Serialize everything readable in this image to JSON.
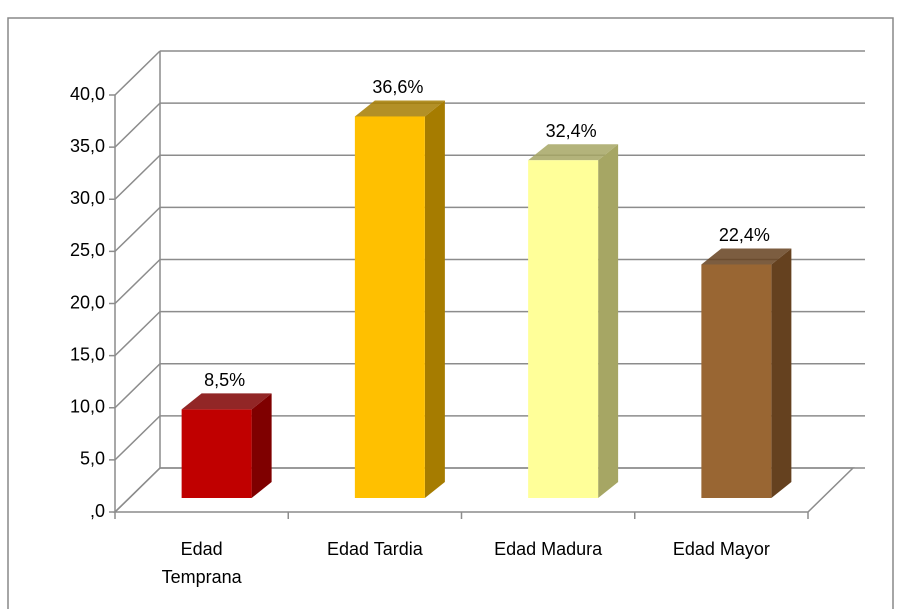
{
  "chart_data": {
    "type": "bar3d",
    "categories": [
      "Edad Temprana",
      "Edad Tardia",
      "Edad Madura",
      "Edad Mayor"
    ],
    "values": [
      8.5,
      36.6,
      32.4,
      22.4
    ],
    "value_labels": [
      "8,5%",
      "36,6%",
      "32,4%",
      "22,4%"
    ],
    "colors": [
      "#c00000",
      "#ffc000",
      "#ffff99",
      "#996633"
    ],
    "side_colors": [
      "#7f0000",
      "#a67c00",
      "#a6a664",
      "#65411f"
    ],
    "ylim": [
      0,
      40
    ],
    "yticks": [
      {
        "value": 0,
        "label": ",0"
      },
      {
        "value": 5,
        "label": "5,0"
      },
      {
        "value": 10,
        "label": "10,0"
      },
      {
        "value": 15,
        "label": "15,0"
      },
      {
        "value": 20,
        "label": "20,0"
      },
      {
        "value": 25,
        "label": "25,0"
      },
      {
        "value": 30,
        "label": "30,0"
      },
      {
        "value": 35,
        "label": "35,0"
      },
      {
        "value": 40,
        "label": "40,0"
      }
    ],
    "grid": true
  }
}
